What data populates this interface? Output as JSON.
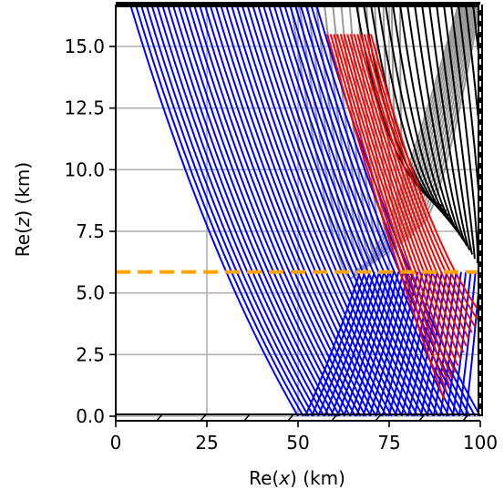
{
  "chart_data": {
    "type": "line",
    "title": "",
    "xlabel_prefix": "Re(",
    "xlabel_var": "x",
    "xlabel_suffix": ") (km)",
    "ylabel_prefix": "Re(",
    "ylabel_var": "z",
    "ylabel_suffix": ") (km)",
    "xlim": [
      0,
      100
    ],
    "ylim": [
      0,
      16.7
    ],
    "xticks": [
      0,
      25,
      50,
      75,
      100
    ],
    "xtick_labels": [
      "0",
      "25",
      "50",
      "75",
      "100"
    ],
    "yticks": [
      0.0,
      2.5,
      5.0,
      7.5,
      10.0,
      12.5,
      15.0
    ],
    "ytick_labels": [
      "0.0",
      "2.5",
      "5.0",
      "7.5",
      "10.0",
      "12.5",
      "15.0"
    ],
    "grid": true,
    "reflector_line": {
      "y": 5.85,
      "color": "#FFA500",
      "style": "dashed"
    },
    "series": [
      {
        "color": "#0000FF",
        "description_type": "down-going rays (0 to bottom)",
        "segments_desc": "each ray descends from top edge to z=0",
        "x_top_start": 4,
        "x_top_end": 55,
        "x_bottom_start": 50,
        "x_bottom_end": 100,
        "count": 36
      },
      {
        "color": "#0000FF",
        "description_type": "up-going reflected rays",
        "x_bottom_start": 52,
        "x_bottom_end": 96,
        "x_top_start": 67,
        "x_top_end": 100,
        "z_top": 5.85,
        "count": 26
      },
      {
        "color": "#FF0000",
        "description_type": "red rays",
        "x_top_start": 58,
        "x_top_end": 70,
        "x_bottom_start": 90,
        "x_bottom_end": 100,
        "count": 14
      },
      {
        "color": "#999999",
        "description_type": "grey rays",
        "count": 14
      },
      {
        "color": "#000000",
        "description_type": "black rays",
        "count": 18
      }
    ],
    "colors": {
      "blue": "#0000FF",
      "red": "#FF0000",
      "grey": "#999999",
      "black": "#000000",
      "orange": "#FFA500",
      "grid": "#b0b0b0"
    }
  }
}
